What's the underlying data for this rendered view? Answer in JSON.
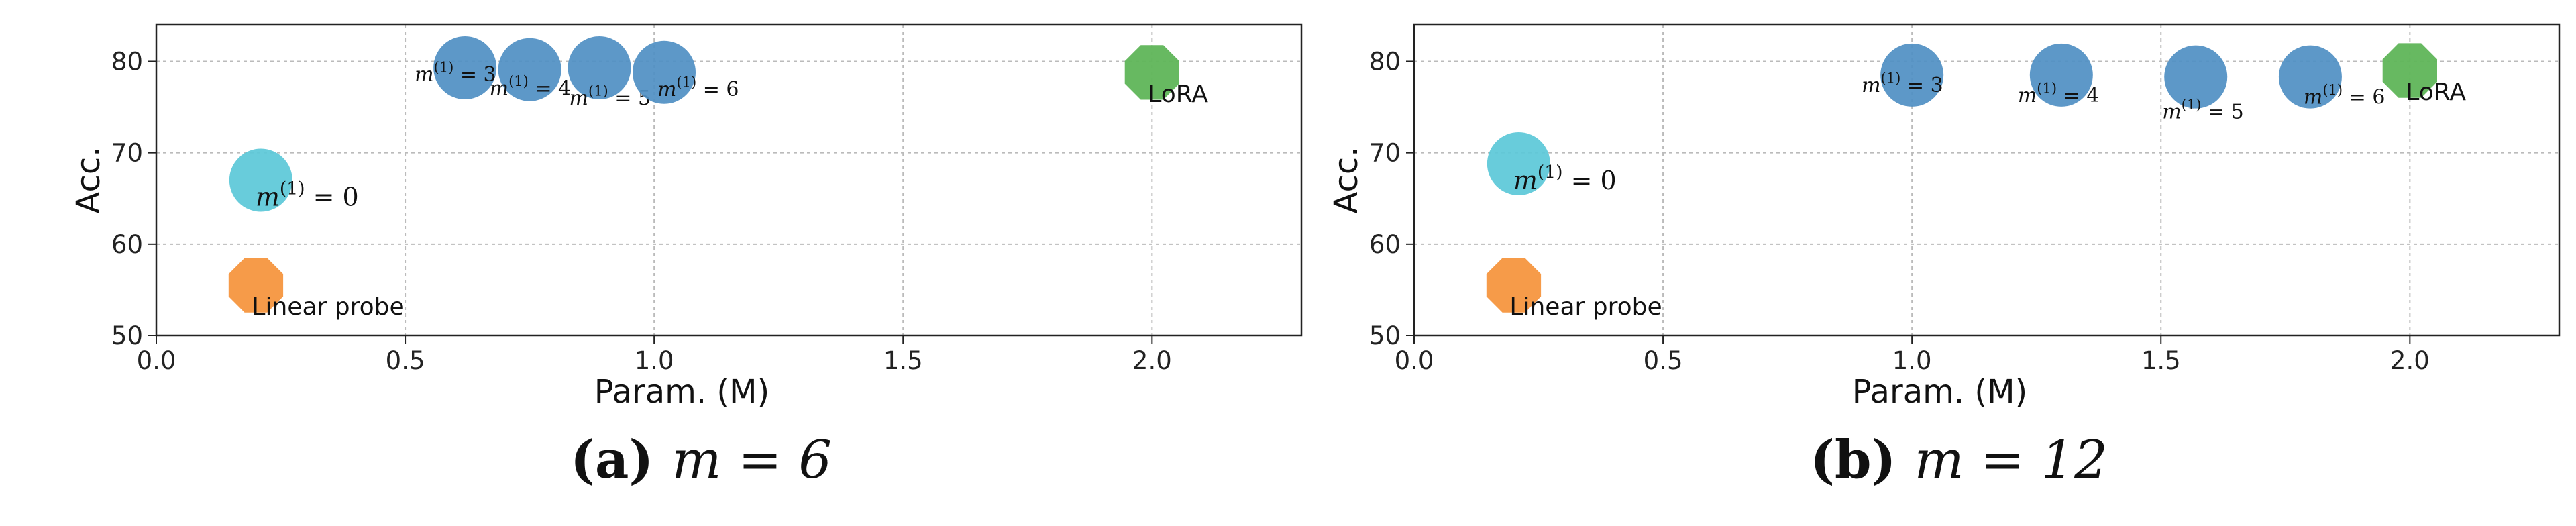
{
  "chart_data": [
    {
      "type": "scatter",
      "caption": {
        "tag": "(a)",
        "math": "m = 6"
      },
      "xlabel": "Param. (M)",
      "ylabel": "Acc.",
      "xlim": [
        0.0,
        2.3
      ],
      "ylim": [
        50,
        84
      ],
      "xticks": [
        "0.0",
        "0.5",
        "1.0",
        "1.5",
        "2.0"
      ],
      "yticks": [
        "50",
        "60",
        "70",
        "80"
      ],
      "grid": true,
      "points": [
        {
          "kind": "linear",
          "label": "Linear probe",
          "x": 0.2,
          "y": 55.5
        },
        {
          "kind": "m",
          "sup": "(1)",
          "val": "0",
          "x": 0.21,
          "y": 67
        },
        {
          "kind": "m",
          "sup": "(1)",
          "val": "3",
          "x": 0.62,
          "y": 79.3
        },
        {
          "kind": "m",
          "sup": "(1)",
          "val": "4",
          "x": 0.75,
          "y": 79.1
        },
        {
          "kind": "m",
          "sup": "(1)",
          "val": "5",
          "x": 0.89,
          "y": 79.3
        },
        {
          "kind": "m",
          "sup": "(1)",
          "val": "6",
          "x": 1.02,
          "y": 78.8
        },
        {
          "kind": "lora",
          "label": "LoRA",
          "x": 2.0,
          "y": 78.8
        }
      ]
    },
    {
      "type": "scatter",
      "caption": {
        "tag": "(b)",
        "math": "m = 12"
      },
      "xlabel": "Param. (M)",
      "ylabel": "Acc.",
      "xlim": [
        0.0,
        2.3
      ],
      "ylim": [
        50,
        84
      ],
      "xticks": [
        "0.0",
        "0.5",
        "1.0",
        "1.5",
        "2.0"
      ],
      "yticks": [
        "50",
        "60",
        "70",
        "80"
      ],
      "grid": true,
      "points": [
        {
          "kind": "linear",
          "label": "Linear probe",
          "x": 0.2,
          "y": 55.5
        },
        {
          "kind": "m",
          "sup": "(1)",
          "val": "0",
          "x": 0.21,
          "y": 68.8
        },
        {
          "kind": "m",
          "sup": "(1)",
          "val": "3",
          "x": 1.0,
          "y": 78.5
        },
        {
          "kind": "m",
          "sup": "(1)",
          "val": "4",
          "x": 1.3,
          "y": 78.5
        },
        {
          "kind": "m",
          "sup": "(1)",
          "val": "5",
          "x": 1.57,
          "y": 78.3
        },
        {
          "kind": "m",
          "sup": "(1)",
          "val": "6",
          "x": 1.8,
          "y": 78.3
        },
        {
          "kind": "lora",
          "label": "LoRA",
          "x": 2.0,
          "y": 79
        }
      ]
    }
  ],
  "colors": {
    "m_zero": "#5bc8d8",
    "m_other": "#4f8fc3",
    "linear": "#f5963f",
    "lora": "#5fb558",
    "grid": "#bbbbbb"
  }
}
